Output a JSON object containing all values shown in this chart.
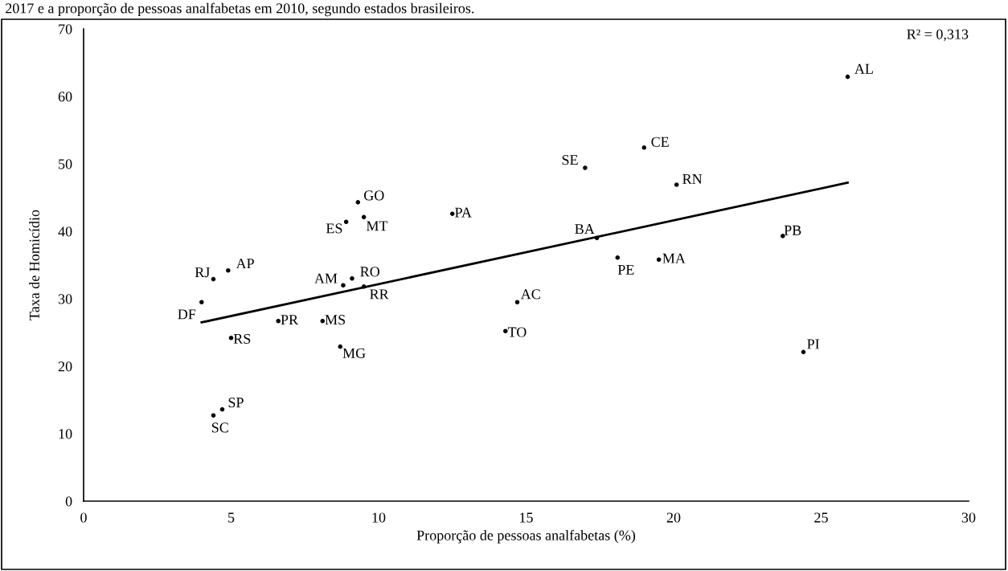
{
  "chart_data": {
    "type": "scatter",
    "title": "2017 e a proporção de pessoas analfabetas em 2010, segundo estados brasileiros.",
    "xlabel": "Proporção de pessoas analfabetas (%)",
    "ylabel": "Taxa de Homicídio",
    "xlim": [
      0,
      30
    ],
    "xticks": [
      0,
      5,
      10,
      15,
      20,
      25,
      30
    ],
    "ylim": [
      0,
      70
    ],
    "yticks": [
      0,
      10,
      20,
      30,
      40,
      50,
      60,
      70
    ],
    "grid": false,
    "legend": false,
    "annotations": [
      "R² = 0,313"
    ],
    "series": [
      {
        "color": "#000000",
        "marker": "circle",
        "x": [
          25.9,
          19.0,
          17.0,
          20.1,
          17.4,
          23.7,
          18.1,
          19.5,
          14.7,
          14.3,
          24.4,
          9.3,
          9.5,
          8.9,
          12.5,
          4.9,
          4.4,
          9.1,
          8.8,
          9.5,
          4.0,
          6.6,
          8.1,
          5.0,
          8.7,
          4.7,
          4.4
        ],
        "values": [
          62.9,
          52.4,
          49.4,
          46.9,
          39.0,
          39.3,
          36.1,
          35.8,
          29.5,
          25.2,
          22.1,
          44.3,
          42.1,
          41.4,
          42.6,
          34.2,
          32.9,
          33.0,
          32.0,
          31.8,
          29.5,
          26.7,
          26.7,
          24.2,
          22.9,
          13.6,
          12.7
        ],
        "value_labels": [
          "AL",
          "CE",
          "SE",
          "RN",
          "BA",
          "PB",
          "PE",
          "MA",
          "AC",
          "TO",
          "PI",
          "GO",
          "MT",
          "ES",
          "PA",
          "AP",
          "RJ",
          "RO",
          "AM",
          "RR",
          "DF",
          "PR",
          "MS",
          "RS",
          "MG",
          "SP",
          "SC"
        ]
      },
      {
        "type": "line",
        "color": "#000000",
        "line_style": "solid",
        "marker": "none",
        "x": [
          4.0,
          25.9
        ],
        "values": [
          26.5,
          47.2
        ]
      }
    ]
  }
}
